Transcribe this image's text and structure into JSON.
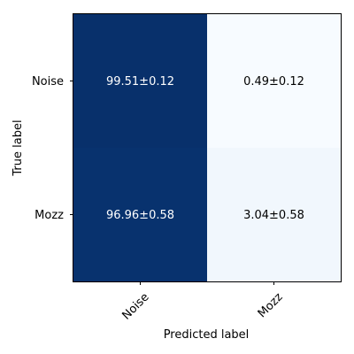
{
  "chart_data": {
    "type": "heatmap",
    "xlabel": "Predicted label",
    "ylabel": "True label",
    "x_categories": [
      "Noise",
      "Mozz"
    ],
    "y_categories": [
      "Noise",
      "Mozz"
    ],
    "values": [
      [
        99.51,
        0.49
      ],
      [
        96.96,
        3.04
      ]
    ],
    "cell_labels": [
      [
        "99.51±0.12",
        "0.49±0.12"
      ],
      [
        "96.96±0.58",
        "3.04±0.58"
      ]
    ],
    "cell_colors": [
      [
        "#08306b",
        "#f7fbff"
      ],
      [
        "#08326e",
        "#f1f7fd"
      ]
    ],
    "label_colors": [
      [
        "#ffffff",
        "#000000"
      ],
      [
        "#ffffff",
        "#000000"
      ]
    ],
    "colormap": "Blues"
  }
}
